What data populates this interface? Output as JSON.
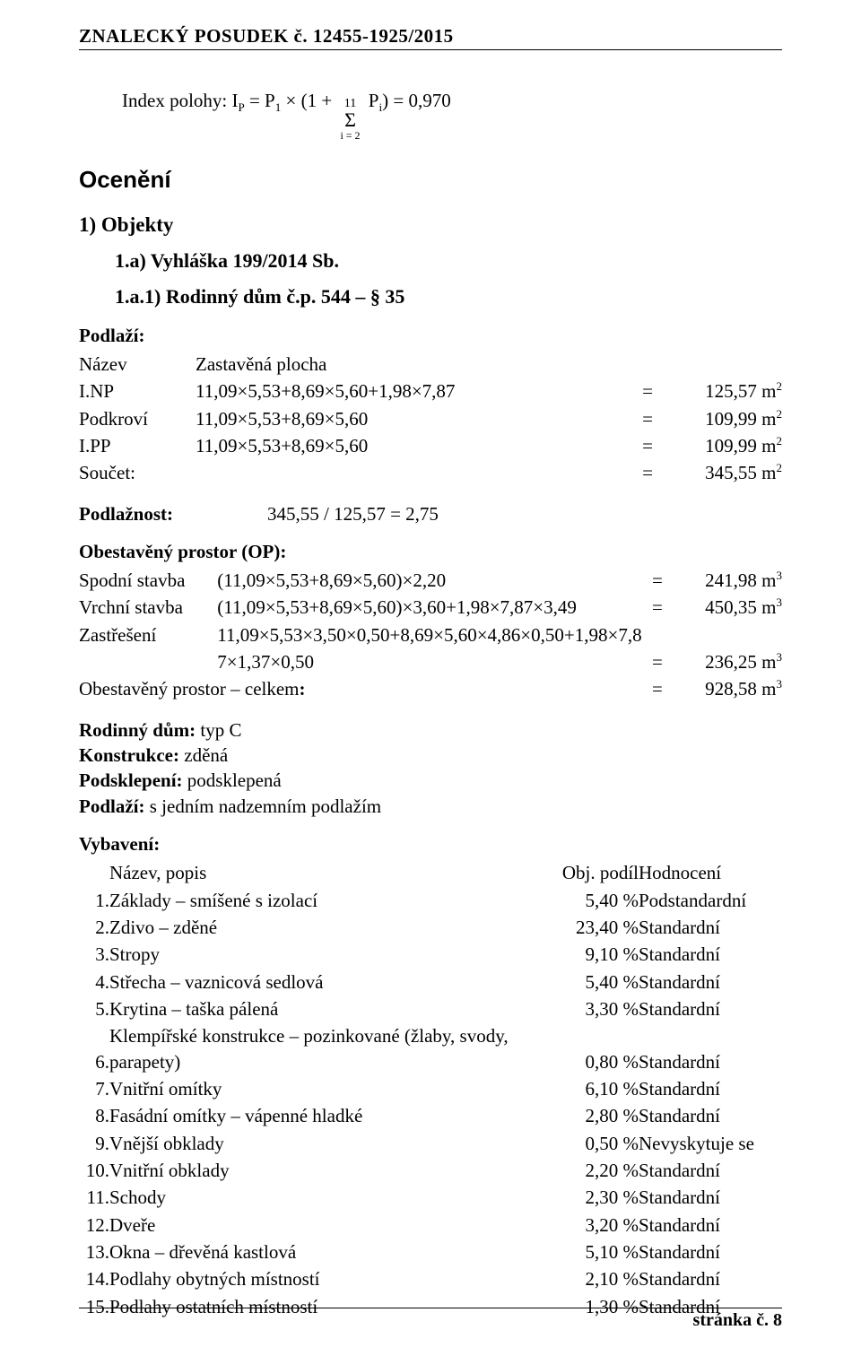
{
  "header": "ZNALECKÝ   POSUDEK č. 12455-1925/2015",
  "formula": {
    "prefix": "Index polohy:  I",
    "sub1": "P",
    "mid1": " = P",
    "sub2": "1",
    "mid2": " × (1 + ",
    "sigma_top": "11",
    "sigma_bot": "i = 2",
    "mid3": " P",
    "sub3": "i",
    "mid4": ") = 0,970"
  },
  "h_oceneni": "Ocenění",
  "h_objekty": "1)  Objekty",
  "h_vyhlaska": "1.a)  Vyhláška 199/2014 Sb.",
  "h_rodinny": "1.a.1)  Rodinný dům č.p. 544 – § 35",
  "podlazi": {
    "title": "Podlaží:",
    "header_name": "Název",
    "header_calc": "Zastavěná plocha",
    "rows": [
      {
        "name": "I.NP",
        "calc": "11,09×5,53+8,69×5,60+1,98×7,87",
        "val": "125,57 m",
        "sup": "2"
      },
      {
        "name": "Podkroví",
        "calc": "11,09×5,53+8,69×5,60",
        "val": "109,99 m",
        "sup": "2"
      },
      {
        "name": "I.PP",
        "calc": "11,09×5,53+8,69×5,60",
        "val": "109,99 m",
        "sup": "2"
      }
    ],
    "sum_label": "Součet:",
    "sum_val": "345,55 m",
    "sum_sup": "2"
  },
  "podlaznost": {
    "label": "Podlažnost:",
    "calc": "345,55 / 125,57    = 2,75"
  },
  "op": {
    "title": "Obestavěný prostor (OP):",
    "rows": [
      {
        "name": "Spodní stavba",
        "calc": "(11,09×5,53+8,69×5,60)×2,20",
        "val": "241,98 m",
        "sup": "3"
      },
      {
        "name": "Vrchní stavba",
        "calc": "(11,09×5,53+8,69×5,60)×3,60+1,98×7,87×3,49",
        "val": "450,35 m",
        "sup": "3"
      },
      {
        "name": "Zastřešení",
        "calc": "11,09×5,53×3,50×0,50+8,69×5,60×4,86×0,50+1,98×7,8",
        "val": "",
        "sup": ""
      },
      {
        "name": "",
        "calc": "7×1,37×0,50",
        "val": "236,25 m",
        "sup": "3"
      }
    ],
    "sum_label": "Obestavěný prostor – celkem",
    "sum_colon": ":",
    "sum_val": "928,58 m",
    "sum_sup": "3"
  },
  "attrs": [
    {
      "label": "Rodinný dům:",
      "value": " typ C"
    },
    {
      "label": "Konstrukce:",
      "value": " zděná"
    },
    {
      "label": "Podsklepení:",
      "value": " podsklepená"
    },
    {
      "label": "Podlaží:",
      "value": " s jedním nadzemním podlažím"
    }
  ],
  "vyb": {
    "title": "Vybavení:",
    "header_desc": "Název, popis",
    "header_pct": "Obj. podíl",
    "header_rating": "Hodnocení",
    "rows": [
      {
        "n": "1.",
        "d": "Základy – smíšené s izolací",
        "p": "5,40 %",
        "r": "Podstandardní"
      },
      {
        "n": "2.",
        "d": "Zdivo – zděné",
        "p": "23,40 %",
        "r": "Standardní"
      },
      {
        "n": "3.",
        "d": "Stropy",
        "p": "9,10 %",
        "r": "Standardní"
      },
      {
        "n": "4.",
        "d": "Střecha – vaznicová sedlová",
        "p": "5,40 %",
        "r": "Standardní"
      },
      {
        "n": "5.",
        "d": "Krytina – taška pálená",
        "p": "3,30 %",
        "r": "Standardní"
      },
      {
        "n": "6.",
        "d": "Klempířské konstrukce – pozinkované (žlaby, svody, parapety)",
        "p": "0,80 %",
        "r": "Standardní"
      },
      {
        "n": "7.",
        "d": "Vnitřní omítky",
        "p": "6,10 %",
        "r": "Standardní"
      },
      {
        "n": "8.",
        "d": "Fasádní omítky – vápenné hladké",
        "p": "2,80 %",
        "r": "Standardní"
      },
      {
        "n": "9.",
        "d": "Vnější obklady",
        "p": "0,50 %",
        "r": "Nevyskytuje se"
      },
      {
        "n": "10.",
        "d": "Vnitřní obklady",
        "p": "2,20 %",
        "r": "Standardní"
      },
      {
        "n": "11.",
        "d": "Schody",
        "p": "2,30 %",
        "r": "Standardní"
      },
      {
        "n": "12.",
        "d": "Dveře",
        "p": "3,20 %",
        "r": "Standardní"
      },
      {
        "n": "13.",
        "d": "Okna – dřevěná kastlová",
        "p": "5,10 %",
        "r": "Standardní"
      },
      {
        "n": "14.",
        "d": "Podlahy obytných místností",
        "p": "2,10 %",
        "r": "Standardní"
      },
      {
        "n": "15.",
        "d": "Podlahy ostatních místností",
        "p": "1,30 %",
        "r": "Standardní"
      }
    ]
  },
  "footer": "stránka č.  8"
}
